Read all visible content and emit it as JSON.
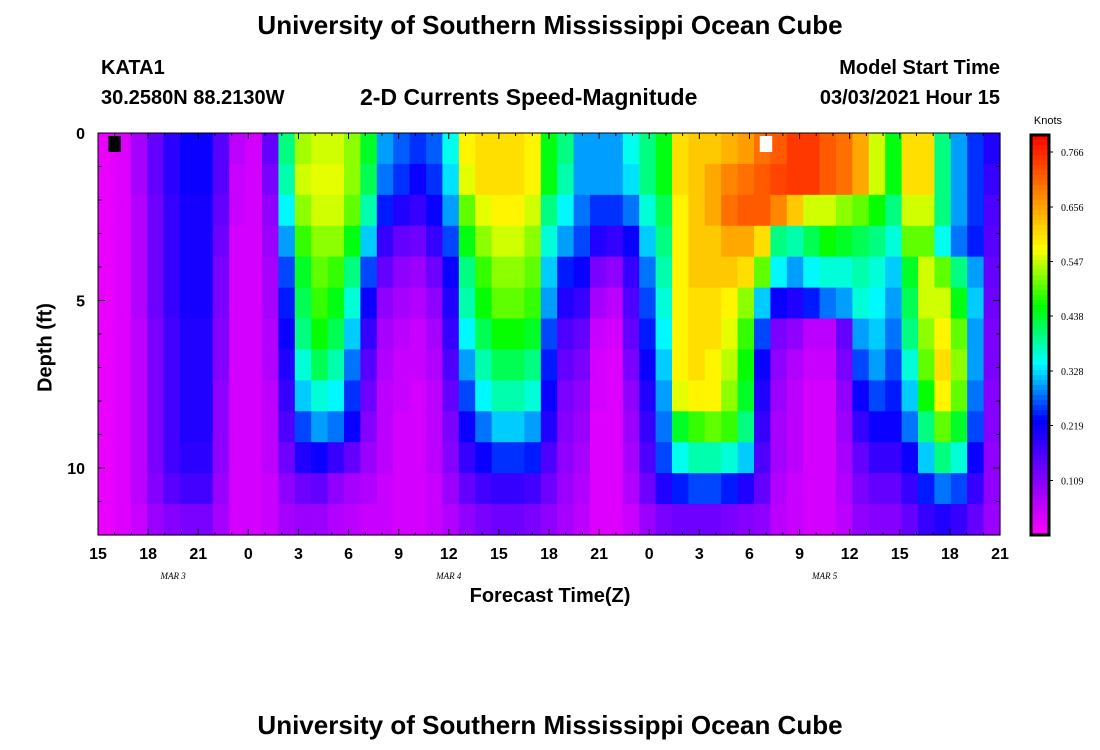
{
  "page": {
    "title_top": "University of Southern Mississippi Ocean Cube",
    "title_bottom": "University of Southern Mississippi Ocean Cube",
    "station": "KATA1",
    "coords": "30.2580N 88.2130W",
    "chart_title": "2-D Currents Speed-Magnitude",
    "start_label": "Model Start Time",
    "start_value": "03/03/2021 Hour 15"
  },
  "chart_data": {
    "type": "heatmap",
    "title": "2-D Currents Speed-Magnitude",
    "xlabel": "Forecast Time(Z)",
    "ylabel": "Depth (ft)",
    "units": "Knots",
    "x_hours": [
      0,
      1,
      2,
      3,
      4,
      5,
      6,
      7,
      8,
      9,
      10,
      11,
      12,
      13,
      14,
      15,
      16,
      17,
      18,
      19,
      20,
      21,
      22,
      23,
      24,
      25,
      26,
      27,
      28,
      29,
      30,
      31,
      32,
      33,
      34,
      35,
      36,
      37,
      38,
      39,
      40,
      41,
      42,
      43,
      44,
      45,
      46,
      47,
      48,
      49,
      50,
      51,
      52,
      53,
      54
    ],
    "x_ticks": [
      {
        "h": 0,
        "label": "15"
      },
      {
        "h": 3,
        "label": "18"
      },
      {
        "h": 6,
        "label": "21"
      },
      {
        "h": 9,
        "label": "0"
      },
      {
        "h": 12,
        "label": "3"
      },
      {
        "h": 15,
        "label": "6"
      },
      {
        "h": 18,
        "label": "9"
      },
      {
        "h": 21,
        "label": "12"
      },
      {
        "h": 24,
        "label": "15"
      },
      {
        "h": 27,
        "label": "18"
      },
      {
        "h": 30,
        "label": "21"
      },
      {
        "h": 33,
        "label": "0"
      },
      {
        "h": 36,
        "label": "3"
      },
      {
        "h": 39,
        "label": "6"
      },
      {
        "h": 42,
        "label": "9"
      },
      {
        "h": 45,
        "label": "12"
      },
      {
        "h": 48,
        "label": "15"
      },
      {
        "h": 51,
        "label": "18"
      },
      {
        "h": 54,
        "label": "21"
      }
    ],
    "date_labels": [
      {
        "h": 4.5,
        "label": "MAR 3"
      },
      {
        "h": 21,
        "label": "MAR 4"
      },
      {
        "h": 43.5,
        "label": "MAR 5"
      }
    ],
    "y_depths": [
      0,
      1,
      2,
      3,
      4,
      5,
      6,
      7,
      8,
      9,
      10,
      11,
      12
    ],
    "y_ticks": [
      {
        "v": 0,
        "label": "0"
      },
      {
        "v": 5,
        "label": "5"
      },
      {
        "v": 10,
        "label": "10"
      }
    ],
    "ylim": [
      0,
      12
    ],
    "xlim": [
      0,
      54
    ],
    "colorbar_ticks": [
      0.109,
      0.219,
      0.328,
      0.438,
      0.547,
      0.656,
      0.766
    ],
    "colorbar_range": [
      0,
      0.8
    ],
    "speed_grid": [
      [
        0.02,
        0.03,
        0.08,
        0.14,
        0.19,
        0.22,
        0.22,
        0.15,
        0.06,
        0.04,
        0.14,
        0.4,
        0.53,
        0.55,
        0.55,
        0.52,
        0.44,
        0.3,
        0.27,
        0.25,
        0.27,
        0.35,
        0.58,
        0.6,
        0.6,
        0.6,
        0.58,
        0.45,
        0.4,
        0.3,
        0.3,
        0.3,
        0.35,
        0.4,
        0.45,
        0.6,
        0.62,
        0.62,
        0.64,
        0.66,
        0.7,
        0.72,
        0.75,
        0.75,
        0.72,
        0.7,
        0.65,
        0.55,
        0.45,
        0.6,
        0.6,
        0.4,
        0.3,
        0.25,
        0.2
      ],
      [
        0.02,
        0.03,
        0.08,
        0.14,
        0.19,
        0.22,
        0.22,
        0.15,
        0.05,
        0.04,
        0.12,
        0.38,
        0.55,
        0.56,
        0.56,
        0.52,
        0.42,
        0.28,
        0.25,
        0.22,
        0.25,
        0.33,
        0.56,
        0.6,
        0.6,
        0.6,
        0.58,
        0.45,
        0.38,
        0.3,
        0.3,
        0.3,
        0.33,
        0.4,
        0.45,
        0.6,
        0.62,
        0.65,
        0.68,
        0.7,
        0.72,
        0.74,
        0.75,
        0.75,
        0.72,
        0.7,
        0.65,
        0.55,
        0.45,
        0.6,
        0.6,
        0.4,
        0.3,
        0.25,
        0.18
      ],
      [
        0.02,
        0.03,
        0.07,
        0.13,
        0.18,
        0.21,
        0.21,
        0.14,
        0.05,
        0.04,
        0.1,
        0.34,
        0.52,
        0.55,
        0.55,
        0.5,
        0.38,
        0.24,
        0.2,
        0.18,
        0.22,
        0.3,
        0.5,
        0.56,
        0.58,
        0.58,
        0.55,
        0.4,
        0.34,
        0.28,
        0.25,
        0.25,
        0.28,
        0.36,
        0.42,
        0.58,
        0.62,
        0.65,
        0.7,
        0.72,
        0.72,
        0.68,
        0.62,
        0.55,
        0.55,
        0.52,
        0.5,
        0.46,
        0.4,
        0.55,
        0.55,
        0.4,
        0.3,
        0.25,
        0.16
      ],
      [
        0.02,
        0.03,
        0.07,
        0.13,
        0.18,
        0.21,
        0.21,
        0.13,
        0.04,
        0.04,
        0.09,
        0.3,
        0.48,
        0.52,
        0.52,
        0.45,
        0.32,
        0.18,
        0.14,
        0.13,
        0.18,
        0.26,
        0.45,
        0.52,
        0.55,
        0.55,
        0.52,
        0.36,
        0.3,
        0.26,
        0.2,
        0.18,
        0.22,
        0.32,
        0.4,
        0.58,
        0.62,
        0.62,
        0.65,
        0.65,
        0.6,
        0.4,
        0.38,
        0.42,
        0.46,
        0.44,
        0.42,
        0.4,
        0.36,
        0.5,
        0.5,
        0.35,
        0.28,
        0.24,
        0.15
      ],
      [
        0.02,
        0.03,
        0.07,
        0.13,
        0.18,
        0.21,
        0.21,
        0.12,
        0.04,
        0.04,
        0.08,
        0.26,
        0.44,
        0.5,
        0.48,
        0.4,
        0.26,
        0.14,
        0.1,
        0.09,
        0.13,
        0.22,
        0.4,
        0.48,
        0.52,
        0.52,
        0.5,
        0.32,
        0.24,
        0.22,
        0.12,
        0.1,
        0.18,
        0.28,
        0.38,
        0.58,
        0.62,
        0.62,
        0.62,
        0.6,
        0.5,
        0.34,
        0.3,
        0.34,
        0.36,
        0.36,
        0.38,
        0.36,
        0.32,
        0.44,
        0.55,
        0.5,
        0.4,
        0.3,
        0.14
      ],
      [
        0.02,
        0.03,
        0.07,
        0.13,
        0.18,
        0.21,
        0.21,
        0.12,
        0.04,
        0.04,
        0.08,
        0.24,
        0.42,
        0.48,
        0.45,
        0.36,
        0.22,
        0.1,
        0.08,
        0.07,
        0.1,
        0.2,
        0.38,
        0.46,
        0.5,
        0.5,
        0.48,
        0.3,
        0.2,
        0.18,
        0.08,
        0.06,
        0.16,
        0.26,
        0.36,
        0.58,
        0.6,
        0.6,
        0.58,
        0.52,
        0.32,
        0.22,
        0.2,
        0.24,
        0.28,
        0.3,
        0.36,
        0.34,
        0.3,
        0.42,
        0.55,
        0.55,
        0.45,
        0.32,
        0.13
      ],
      [
        0.02,
        0.03,
        0.06,
        0.12,
        0.17,
        0.2,
        0.2,
        0.11,
        0.04,
        0.04,
        0.07,
        0.22,
        0.4,
        0.46,
        0.42,
        0.32,
        0.18,
        0.08,
        0.06,
        0.05,
        0.08,
        0.18,
        0.34,
        0.42,
        0.46,
        0.46,
        0.44,
        0.26,
        0.16,
        0.14,
        0.05,
        0.04,
        0.14,
        0.24,
        0.34,
        0.58,
        0.6,
        0.6,
        0.56,
        0.48,
        0.26,
        0.12,
        0.1,
        0.06,
        0.06,
        0.14,
        0.3,
        0.32,
        0.28,
        0.4,
        0.52,
        0.58,
        0.5,
        0.3,
        0.12
      ],
      [
        0.02,
        0.03,
        0.06,
        0.12,
        0.17,
        0.2,
        0.2,
        0.11,
        0.04,
        0.04,
        0.07,
        0.2,
        0.36,
        0.42,
        0.38,
        0.28,
        0.15,
        0.07,
        0.05,
        0.05,
        0.07,
        0.16,
        0.3,
        0.38,
        0.42,
        0.42,
        0.4,
        0.24,
        0.14,
        0.12,
        0.04,
        0.03,
        0.12,
        0.22,
        0.32,
        0.58,
        0.6,
        0.58,
        0.54,
        0.46,
        0.22,
        0.1,
        0.07,
        0.05,
        0.05,
        0.12,
        0.26,
        0.3,
        0.26,
        0.36,
        0.5,
        0.6,
        0.52,
        0.3,
        0.12
      ],
      [
        0.02,
        0.03,
        0.06,
        0.12,
        0.17,
        0.2,
        0.2,
        0.1,
        0.04,
        0.04,
        0.06,
        0.18,
        0.32,
        0.36,
        0.34,
        0.25,
        0.13,
        0.06,
        0.05,
        0.04,
        0.06,
        0.14,
        0.26,
        0.34,
        0.38,
        0.38,
        0.36,
        0.22,
        0.12,
        0.1,
        0.04,
        0.03,
        0.1,
        0.2,
        0.3,
        0.56,
        0.58,
        0.58,
        0.52,
        0.44,
        0.2,
        0.09,
        0.06,
        0.04,
        0.04,
        0.1,
        0.22,
        0.26,
        0.24,
        0.32,
        0.46,
        0.58,
        0.5,
        0.28,
        0.11
      ],
      [
        0.02,
        0.03,
        0.06,
        0.12,
        0.17,
        0.2,
        0.2,
        0.1,
        0.04,
        0.04,
        0.06,
        0.16,
        0.26,
        0.3,
        0.28,
        0.22,
        0.11,
        0.06,
        0.04,
        0.04,
        0.06,
        0.12,
        0.22,
        0.28,
        0.32,
        0.32,
        0.3,
        0.2,
        0.11,
        0.09,
        0.03,
        0.03,
        0.09,
        0.18,
        0.28,
        0.44,
        0.48,
        0.5,
        0.48,
        0.4,
        0.18,
        0.08,
        0.06,
        0.04,
        0.04,
        0.09,
        0.18,
        0.22,
        0.22,
        0.28,
        0.4,
        0.5,
        0.44,
        0.26,
        0.11
      ],
      [
        0.02,
        0.03,
        0.06,
        0.12,
        0.17,
        0.19,
        0.19,
        0.1,
        0.04,
        0.04,
        0.06,
        0.13,
        0.2,
        0.22,
        0.18,
        0.14,
        0.09,
        0.06,
        0.04,
        0.04,
        0.06,
        0.11,
        0.18,
        0.22,
        0.25,
        0.25,
        0.24,
        0.16,
        0.1,
        0.08,
        0.03,
        0.03,
        0.08,
        0.16,
        0.26,
        0.35,
        0.38,
        0.38,
        0.36,
        0.32,
        0.16,
        0.08,
        0.06,
        0.04,
        0.04,
        0.08,
        0.14,
        0.18,
        0.18,
        0.22,
        0.32,
        0.4,
        0.36,
        0.22,
        0.1
      ],
      [
        0.02,
        0.03,
        0.06,
        0.11,
        0.15,
        0.17,
        0.17,
        0.09,
        0.04,
        0.04,
        0.05,
        0.1,
        0.13,
        0.14,
        0.1,
        0.08,
        0.07,
        0.05,
        0.04,
        0.04,
        0.05,
        0.09,
        0.14,
        0.17,
        0.18,
        0.18,
        0.17,
        0.13,
        0.09,
        0.07,
        0.03,
        0.03,
        0.07,
        0.13,
        0.2,
        0.24,
        0.26,
        0.26,
        0.24,
        0.2,
        0.14,
        0.07,
        0.05,
        0.04,
        0.04,
        0.07,
        0.12,
        0.14,
        0.14,
        0.18,
        0.24,
        0.28,
        0.26,
        0.18,
        0.1
      ],
      [
        0.02,
        0.03,
        0.05,
        0.09,
        0.11,
        0.12,
        0.12,
        0.08,
        0.04,
        0.04,
        0.05,
        0.08,
        0.09,
        0.09,
        0.07,
        0.06,
        0.05,
        0.05,
        0.04,
        0.04,
        0.05,
        0.07,
        0.1,
        0.12,
        0.13,
        0.13,
        0.12,
        0.1,
        0.08,
        0.06,
        0.03,
        0.03,
        0.05,
        0.09,
        0.12,
        0.13,
        0.13,
        0.13,
        0.12,
        0.11,
        0.1,
        0.06,
        0.05,
        0.04,
        0.04,
        0.06,
        0.1,
        0.11,
        0.11,
        0.14,
        0.18,
        0.2,
        0.18,
        0.14,
        0.09
      ]
    ],
    "missing_cells": [
      {
        "depth": 0,
        "h": 0.5,
        "color": "#000000"
      },
      {
        "depth": 0,
        "h": 39.5,
        "color": "#ffffff"
      }
    ],
    "colors": {
      "axis": "#000000",
      "scale": [
        "#ff00ff",
        "#8000ff",
        "#0000ff",
        "#00ffff",
        "#00ff00",
        "#ffff00",
        "#ff8000",
        "#ff0000"
      ]
    }
  }
}
